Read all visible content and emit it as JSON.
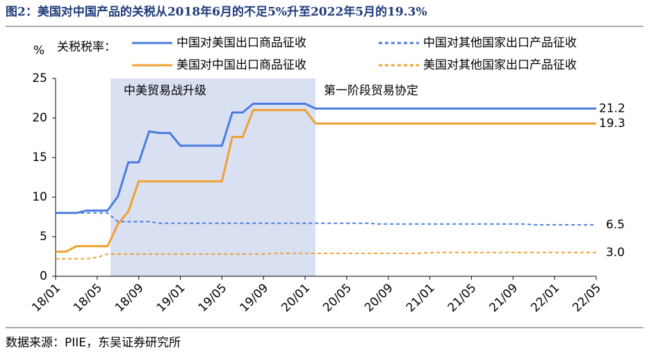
{
  "chart_data": {
    "type": "line",
    "title": "图2：美国对中国产品的关税从2018年6月的不足5%升至2022年5月的19.3%",
    "y_unit": "%",
    "legend_title": "关税税率：",
    "source": "数据来源：PIIE，东吴证券研究所",
    "annotations": [
      "中美贸易战升级",
      "第一阶段贸易协定"
    ],
    "categories": [
      "18/01",
      null,
      null,
      null,
      "18/05",
      null,
      null,
      null,
      "18/09",
      null,
      null,
      null,
      "19/01",
      null,
      null,
      null,
      "19/05",
      null,
      null,
      null,
      "19/09",
      null,
      null,
      null,
      "20/01",
      null,
      null,
      null,
      "20/05",
      null,
      null,
      null,
      "20/09",
      null,
      null,
      null,
      "21/01",
      null,
      null,
      null,
      "21/05",
      null,
      null,
      null,
      "21/09",
      null,
      null,
      null,
      "22/01",
      null,
      null,
      null,
      "22/05"
    ],
    "ylim": [
      0,
      25
    ],
    "yticks": [
      0,
      5,
      10,
      15,
      20,
      25
    ],
    "series": [
      {
        "name": "中国对美国出口商品征收",
        "color": "#4a7be0",
        "dash": false,
        "end_label": "21.2",
        "values": [
          8.0,
          8.0,
          8.0,
          8.3,
          8.3,
          8.3,
          10.1,
          14.4,
          14.4,
          18.3,
          18.1,
          18.1,
          16.5,
          16.5,
          16.5,
          16.5,
          16.5,
          20.7,
          20.7,
          21.8,
          21.8,
          21.8,
          21.8,
          21.8,
          21.8,
          21.2,
          21.2,
          21.2,
          21.2,
          21.2,
          21.2,
          21.2,
          21.2,
          21.2,
          21.2,
          21.2,
          21.2,
          21.2,
          21.2,
          21.2,
          21.2,
          21.2,
          21.2,
          21.2,
          21.2,
          21.2,
          21.2,
          21.2,
          21.2,
          21.2,
          21.2,
          21.2,
          21.2
        ]
      },
      {
        "name": "中国对其他国家出口产品征收",
        "color": "#4a7be0",
        "dash": true,
        "end_label": "6.5",
        "values": [
          8.0,
          8.0,
          8.0,
          8.0,
          8.0,
          8.0,
          6.9,
          6.9,
          6.9,
          6.9,
          6.7,
          6.7,
          6.7,
          6.7,
          6.7,
          6.7,
          6.7,
          6.7,
          6.7,
          6.7,
          6.7,
          6.7,
          6.7,
          6.7,
          6.7,
          6.7,
          6.7,
          6.7,
          6.7,
          6.7,
          6.7,
          6.6,
          6.6,
          6.6,
          6.6,
          6.6,
          6.6,
          6.6,
          6.6,
          6.6,
          6.6,
          6.6,
          6.6,
          6.6,
          6.6,
          6.6,
          6.5,
          6.5,
          6.5,
          6.5,
          6.5,
          6.5,
          6.5
        ]
      },
      {
        "name": "美国对中国出口商品征收",
        "color": "#f0a030",
        "dash": false,
        "end_label": "19.3",
        "values": [
          3.1,
          3.1,
          3.8,
          3.8,
          3.8,
          3.8,
          6.6,
          8.2,
          12.0,
          12.0,
          12.0,
          12.0,
          12.0,
          12.0,
          12.0,
          12.0,
          12.0,
          17.6,
          17.6,
          21.0,
          21.0,
          21.0,
          21.0,
          21.0,
          21.0,
          19.3,
          19.3,
          19.3,
          19.3,
          19.3,
          19.3,
          19.3,
          19.3,
          19.3,
          19.3,
          19.3,
          19.3,
          19.3,
          19.3,
          19.3,
          19.3,
          19.3,
          19.3,
          19.3,
          19.3,
          19.3,
          19.3,
          19.3,
          19.3,
          19.3,
          19.3,
          19.3,
          19.3
        ]
      },
      {
        "name": "美国对其他国家出口产品征收",
        "color": "#f0a030",
        "dash": true,
        "end_label": "3.0",
        "values": [
          2.2,
          2.2,
          2.2,
          2.2,
          2.4,
          2.8,
          2.8,
          2.8,
          2.8,
          2.8,
          2.8,
          2.8,
          2.8,
          2.8,
          2.8,
          2.8,
          2.8,
          2.8,
          2.8,
          2.8,
          2.8,
          2.9,
          2.9,
          2.9,
          2.9,
          2.9,
          2.9,
          2.9,
          2.9,
          2.9,
          2.9,
          2.9,
          2.9,
          2.9,
          2.9,
          2.9,
          3.0,
          3.0,
          3.0,
          3.0,
          3.0,
          3.0,
          3.0,
          3.0,
          3.0,
          3.0,
          3.0,
          3.0,
          3.0,
          3.0,
          3.0,
          3.0,
          3.0
        ]
      }
    ]
  }
}
